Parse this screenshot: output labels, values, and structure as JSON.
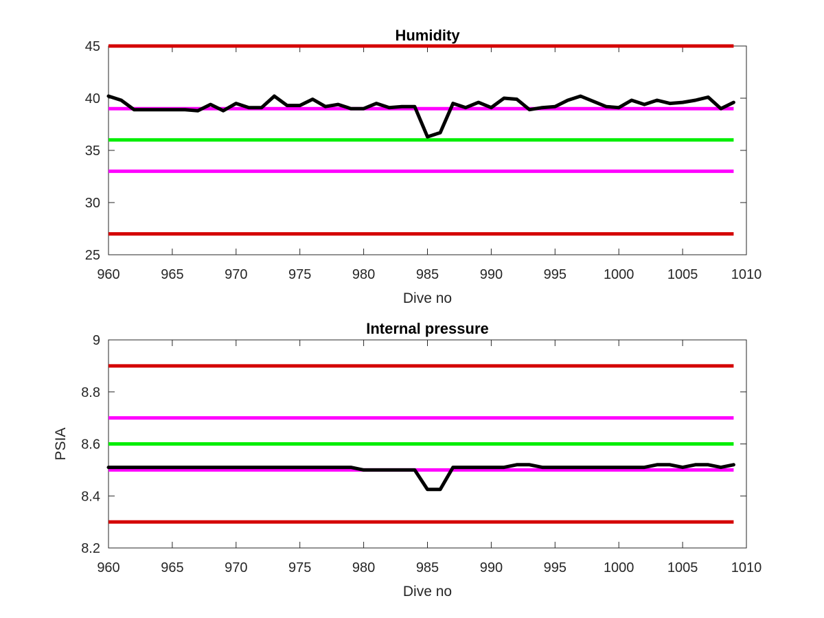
{
  "chart_data": [
    {
      "type": "line",
      "title": "Humidity",
      "xlabel": "Dive no",
      "ylabel": "",
      "xlim": [
        960,
        1010
      ],
      "ylim": [
        25,
        45
      ],
      "xticks": [
        960,
        965,
        970,
        975,
        980,
        985,
        990,
        995,
        1000,
        1005,
        1010
      ],
      "yticks": [
        25,
        30,
        35,
        40,
        45
      ],
      "grid": false,
      "legend": "none",
      "thresholds": [
        {
          "value": 45,
          "color": "#d40000"
        },
        {
          "value": 39,
          "color": "#ff00ff"
        },
        {
          "value": 36,
          "color": "#00ee00"
        },
        {
          "value": 33,
          "color": "#ff00ff"
        },
        {
          "value": 27,
          "color": "#d40000"
        }
      ],
      "series": [
        {
          "color": "#000000",
          "x": [
            960,
            961,
            962,
            963,
            964,
            965,
            966,
            967,
            968,
            969,
            970,
            971,
            972,
            973,
            974,
            975,
            976,
            977,
            978,
            979,
            980,
            981,
            982,
            983,
            984,
            985,
            986,
            987,
            988,
            989,
            990,
            991,
            992,
            993,
            994,
            995,
            996,
            997,
            998,
            999,
            1000,
            1001,
            1002,
            1003,
            1004,
            1005,
            1006,
            1007,
            1008,
            1009
          ],
          "values": [
            40.2,
            39.8,
            38.9,
            38.9,
            38.9,
            38.9,
            38.9,
            38.8,
            39.4,
            38.8,
            39.5,
            39.1,
            39.1,
            40.2,
            39.3,
            39.3,
            39.9,
            39.2,
            39.4,
            39.0,
            39.0,
            39.5,
            39.1,
            39.2,
            39.2,
            36.3,
            36.7,
            39.5,
            39.1,
            39.6,
            39.1,
            40.0,
            39.9,
            38.9,
            39.1,
            39.2,
            39.8,
            40.2,
            39.7,
            39.2,
            39.1,
            39.8,
            39.4,
            39.8,
            39.5,
            39.6,
            39.8,
            40.1,
            39.0,
            39.6
          ]
        }
      ]
    },
    {
      "type": "line",
      "title": "Internal pressure",
      "xlabel": "Dive no",
      "ylabel": "PSIA",
      "xlim": [
        960,
        1010
      ],
      "ylim": [
        8.2,
        9
      ],
      "xticks": [
        960,
        965,
        970,
        975,
        980,
        985,
        990,
        995,
        1000,
        1005,
        1010
      ],
      "yticks": [
        8.2,
        8.4,
        8.6,
        8.8,
        9
      ],
      "grid": false,
      "legend": "none",
      "thresholds": [
        {
          "value": 8.9,
          "color": "#d40000"
        },
        {
          "value": 8.7,
          "color": "#ff00ff"
        },
        {
          "value": 8.6,
          "color": "#00ee00"
        },
        {
          "value": 8.5,
          "color": "#ff00ff"
        },
        {
          "value": 8.3,
          "color": "#d40000"
        }
      ],
      "series": [
        {
          "color": "#000000",
          "x": [
            960,
            961,
            962,
            963,
            964,
            965,
            966,
            967,
            968,
            969,
            970,
            971,
            972,
            973,
            974,
            975,
            976,
            977,
            978,
            979,
            980,
            981,
            982,
            983,
            984,
            985,
            986,
            987,
            988,
            989,
            990,
            991,
            992,
            993,
            994,
            995,
            996,
            997,
            998,
            999,
            1000,
            1001,
            1002,
            1003,
            1004,
            1005,
            1006,
            1007,
            1008,
            1009
          ],
          "values": [
            8.51,
            8.51,
            8.51,
            8.51,
            8.51,
            8.51,
            8.51,
            8.51,
            8.51,
            8.51,
            8.51,
            8.51,
            8.51,
            8.51,
            8.51,
            8.51,
            8.51,
            8.51,
            8.51,
            8.51,
            8.5,
            8.5,
            8.5,
            8.5,
            8.5,
            8.425,
            8.425,
            8.51,
            8.51,
            8.51,
            8.51,
            8.51,
            8.52,
            8.52,
            8.51,
            8.51,
            8.51,
            8.51,
            8.51,
            8.51,
            8.51,
            8.51,
            8.51,
            8.52,
            8.52,
            8.51,
            8.52,
            8.52,
            8.51,
            8.52
          ]
        }
      ]
    }
  ]
}
